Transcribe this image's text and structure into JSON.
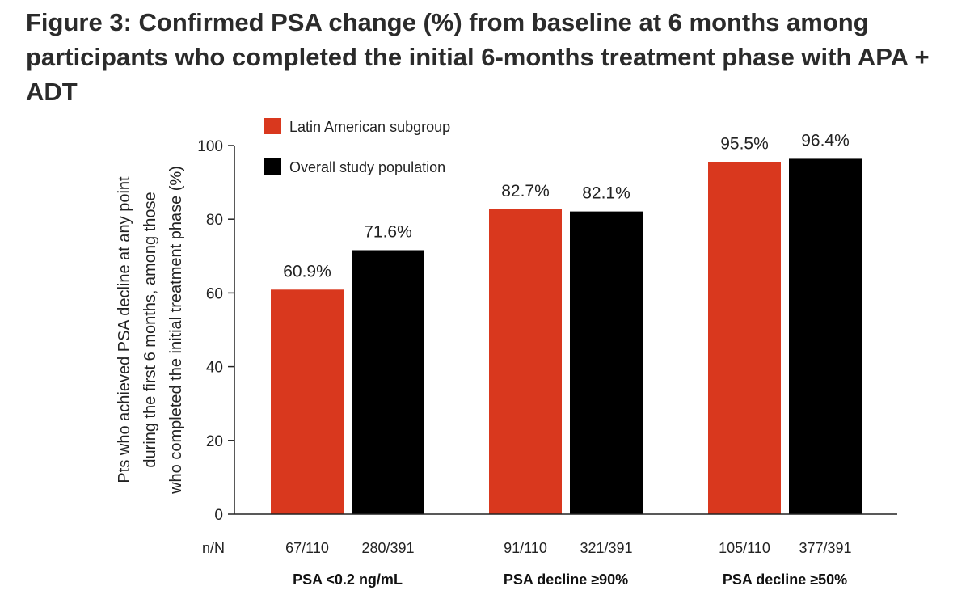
{
  "title": "Figure 3: Confirmed PSA change (%) from baseline at 6 months among participants who completed the initial 6-months treatment phase with APA + ADT",
  "chart_data": {
    "type": "bar",
    "ylabel_lines": [
      "Pts who achieved PSA decline at any point",
      "during the first 6 months, among those",
      "who completed the initial treatment phase (%)"
    ],
    "ylim": [
      0,
      100
    ],
    "yticks": [
      0,
      20,
      40,
      60,
      80,
      100
    ],
    "grid": false,
    "legend_position": "top-left",
    "categories": [
      "PSA <0.2 ng/mL",
      "PSA decline ≥90%",
      "PSA decline ≥50%"
    ],
    "nN_label": "n/N",
    "series": [
      {
        "name": "Latin American subgroup",
        "color": "#d9381e",
        "values": [
          60.9,
          82.7,
          95.5
        ],
        "labels": [
          "60.9%",
          "82.7%",
          "95.5%"
        ],
        "nN": [
          "67/110",
          "91/110",
          "105/110"
        ]
      },
      {
        "name": "Overall study population",
        "color": "#000000",
        "values": [
          71.6,
          82.1,
          96.4
        ],
        "labels": [
          "71.6%",
          "82.1%",
          "96.4%"
        ],
        "nN": [
          "280/391",
          "321/391",
          "377/391"
        ]
      }
    ]
  }
}
